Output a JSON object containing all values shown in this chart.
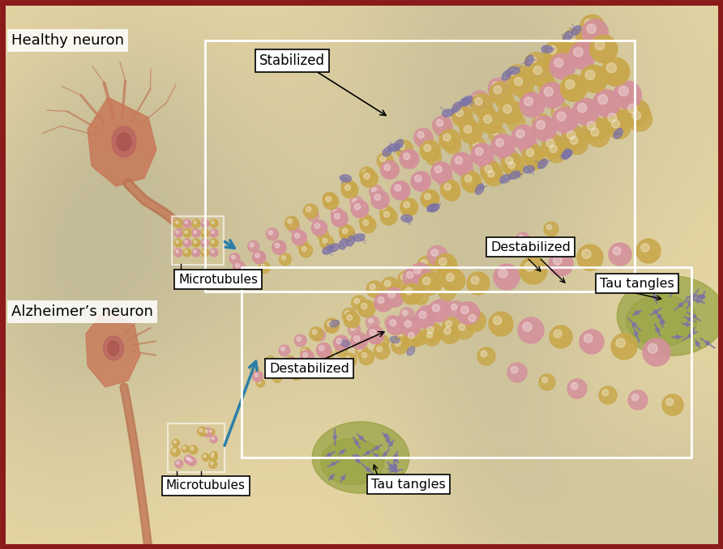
{
  "bg_color": "#e8d0a0",
  "border_color": "#8b1a1a",
  "border_width": 5,
  "labels": {
    "healthy_neuron": "Healthy neuron",
    "alzheimers_neuron": "Alzheimer’s neuron",
    "stabilized": "Stabilized",
    "destabilized_top": "Destabilized",
    "destabilized_mid": "Destabilized",
    "microtubules_top": "Microtubules",
    "microtubules_bot": "Microtubules",
    "tau_tangles_top": "Tau tangles",
    "tau_tangles_bot": "Tau tangles"
  },
  "colors": {
    "gold": "#c9a84c",
    "gold2": "#d4b060",
    "pink": "#d4919b",
    "pink2": "#c87880",
    "purple": "#7b72a8",
    "purple2": "#5a5090",
    "ygreen": "#8a9a30",
    "ygreen2": "#a0b040",
    "neuron_salmon": "#c47a5a",
    "neuron_rose": "#b86060",
    "neuron_dark": "#8b4030",
    "axon_color": "#b87858",
    "bg_dark": "#c8a870",
    "bg_light": "#ecdcaa",
    "arrow_blue": "#2a7fa8",
    "white": "#ffffff",
    "black": "#000000"
  },
  "figsize": [
    8.92,
    6.78
  ],
  "dpi": 100
}
